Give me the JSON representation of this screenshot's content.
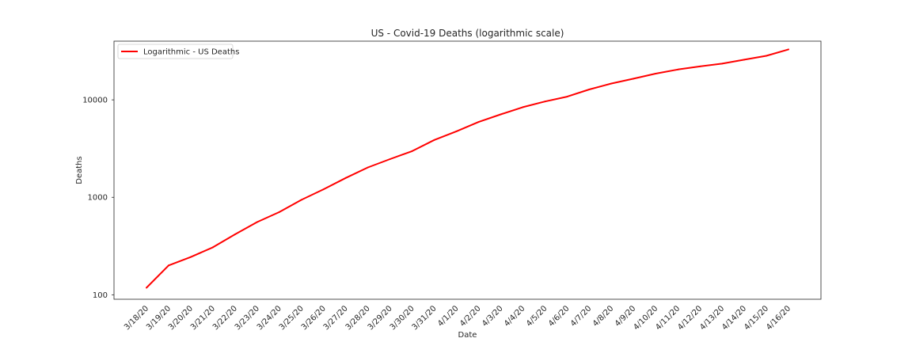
{
  "chart_data": {
    "type": "line",
    "title": "US - Covid-19 Deaths (logarithmic scale)",
    "xlabel": "Date",
    "ylabel": "Deaths",
    "yscale": "log",
    "ylim": [
      90,
      40000
    ],
    "yticks": [
      100,
      1000,
      10000
    ],
    "grid": false,
    "legend_position": "top-left",
    "categories": [
      "3/18/20",
      "3/19/20",
      "3/20/20",
      "3/21/20",
      "3/22/20",
      "3/23/20",
      "3/24/20",
      "3/25/20",
      "3/26/20",
      "3/27/20",
      "3/28/20",
      "3/29/20",
      "3/30/20",
      "3/31/20",
      "4/1/20",
      "4/2/20",
      "4/3/20",
      "4/4/20",
      "4/5/20",
      "4/6/20",
      "4/7/20",
      "4/8/20",
      "4/9/20",
      "4/10/20",
      "4/11/20",
      "4/12/20",
      "4/13/20",
      "4/14/20",
      "4/15/20",
      "4/16/20"
    ],
    "series": [
      {
        "name": "Logarithmic - US Deaths",
        "color": "#ff0000",
        "values": [
          118,
          200,
          244,
          307,
          417,
          557,
          706,
          942,
          1209,
          1581,
          2026,
          2467,
          2978,
          3873,
          4757,
          5926,
          7087,
          8407,
          9619,
          10783,
          12794,
          14695,
          16478,
          18586,
          20463,
          22020,
          23529,
          25831,
          28325,
          32916
        ]
      }
    ]
  }
}
